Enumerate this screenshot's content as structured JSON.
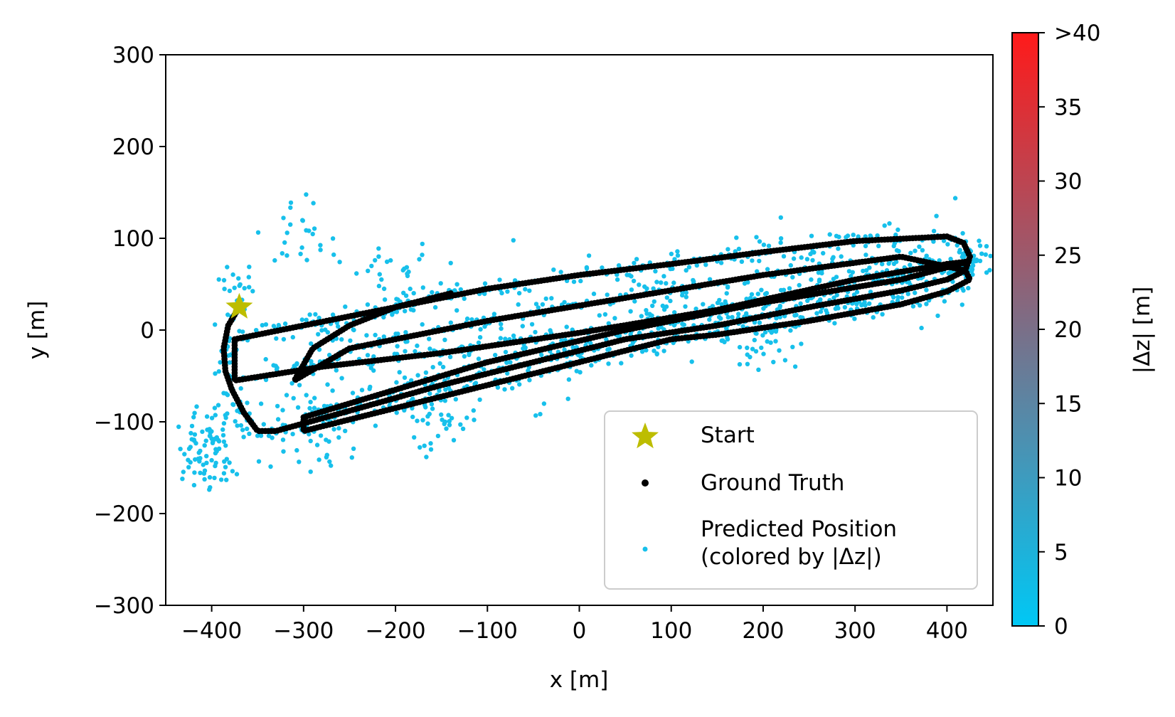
{
  "chart_data": {
    "type": "scatter",
    "xlabel": "x [m]",
    "ylabel": "y [m]",
    "xlim": [
      -450,
      450
    ],
    "ylim": [
      -300,
      300
    ],
    "xticks": [
      -400,
      -300,
      -200,
      -100,
      0,
      100,
      200,
      300,
      400
    ],
    "yticks": [
      -300,
      -200,
      -100,
      0,
      100,
      200,
      300
    ],
    "grid": false,
    "legend_position": "lower-right",
    "legend": [
      {
        "label": "Start",
        "marker": "star",
        "color": "#bdbd00"
      },
      {
        "label": "Ground Truth",
        "marker": "dot",
        "color": "#000000"
      },
      {
        "label": "Predicted Position\n(colored by |Δz|)",
        "marker": "dot",
        "color": "#17c0eb"
      }
    ],
    "colorbar": {
      "label": "|Δz| [m]",
      "min": 0,
      "max": 40,
      "ticks": [
        0,
        5,
        10,
        15,
        20,
        25,
        30,
        35,
        40
      ],
      "tick_labels": [
        "0",
        "5",
        "10",
        "15",
        "20",
        "25",
        "30",
        "35",
        ">40"
      ],
      "color_low": "#00c8f5",
      "color_mid": "#7a6f88",
      "color_high": "#ff1a1a"
    },
    "start": {
      "x": -370,
      "y": 25
    },
    "ground_truth_path": [
      [
        -370,
        25
      ],
      [
        -382,
        5
      ],
      [
        -387,
        -20
      ],
      [
        -385,
        -45
      ],
      [
        -378,
        -65
      ],
      [
        -365,
        -90
      ],
      [
        -350,
        -110
      ],
      [
        -330,
        -110
      ],
      [
        -250,
        -88
      ],
      [
        -150,
        -60
      ],
      [
        -50,
        -35
      ],
      [
        50,
        -10
      ],
      [
        150,
        5
      ],
      [
        250,
        25
      ],
      [
        350,
        43
      ],
      [
        400,
        55
      ],
      [
        420,
        65
      ],
      [
        425,
        80
      ],
      [
        418,
        95
      ],
      [
        400,
        102
      ],
      [
        300,
        97
      ],
      [
        200,
        85
      ],
      [
        100,
        72
      ],
      [
        0,
        60
      ],
      [
        -100,
        45
      ],
      [
        -200,
        25
      ],
      [
        -300,
        5
      ],
      [
        -375,
        -10
      ],
      [
        -375,
        -55
      ],
      [
        -280,
        -40
      ],
      [
        -150,
        -25
      ],
      [
        0,
        -3
      ],
      [
        150,
        22
      ],
      [
        300,
        55
      ],
      [
        400,
        72
      ],
      [
        425,
        75
      ],
      [
        350,
        55
      ],
      [
        200,
        30
      ],
      [
        50,
        0
      ],
      [
        -100,
        -35
      ],
      [
        -200,
        -65
      ],
      [
        -300,
        -95
      ],
      [
        -300,
        -110
      ],
      [
        -200,
        -85
      ],
      [
        -100,
        -60
      ],
      [
        0,
        -35
      ],
      [
        100,
        -10
      ],
      [
        150,
        -5
      ],
      [
        250,
        10
      ],
      [
        350,
        28
      ],
      [
        400,
        42
      ],
      [
        425,
        55
      ],
      [
        420,
        65
      ],
      [
        350,
        80
      ],
      [
        200,
        60
      ],
      [
        50,
        35
      ],
      [
        -100,
        10
      ],
      [
        -250,
        -20
      ],
      [
        -310,
        -55
      ],
      [
        -290,
        -20
      ],
      [
        -250,
        5
      ],
      [
        -200,
        25
      ],
      [
        -140,
        40
      ]
    ],
    "predicted_notes": "Predicted positions scatter around the ground-truth trajectory; all points near |Δz| ≈ 0 (cyan)."
  }
}
